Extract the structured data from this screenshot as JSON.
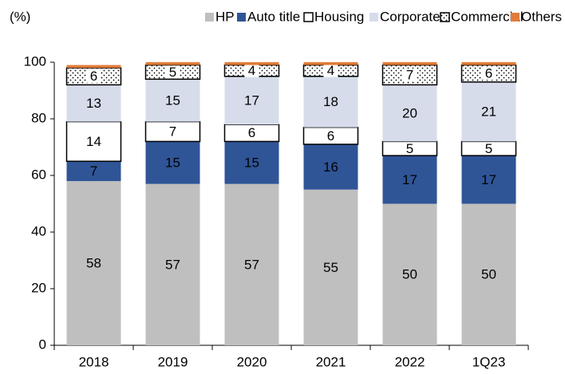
{
  "chart_data": {
    "type": "stacked_bar",
    "y_label": "(%)",
    "categories": [
      "2018",
      "2019",
      "2020",
      "2021",
      "2022",
      "1Q23"
    ],
    "series": [
      {
        "name": "HP",
        "color": "#bfbfbf",
        "values": [
          58,
          57,
          57,
          55,
          50,
          50
        ]
      },
      {
        "name": "Auto title",
        "color": "#2f5597",
        "values": [
          7,
          15,
          15,
          16,
          17,
          17
        ]
      },
      {
        "name": "Housing",
        "color": "#ffffff",
        "edge": "#000000",
        "values": [
          14,
          7,
          6,
          6,
          5,
          5
        ]
      },
      {
        "name": "Corporate",
        "color": "#d6dcea",
        "values": [
          13,
          15,
          17,
          18,
          20,
          21
        ]
      },
      {
        "name": "Commercial",
        "color": "#ffffff",
        "edge": "#000000",
        "pattern": "dots",
        "values": [
          6,
          5,
          4,
          4,
          7,
          6
        ]
      },
      {
        "name": "Others",
        "color": "#e07b39",
        "values": [
          1,
          1,
          1,
          1,
          1,
          1
        ]
      }
    ],
    "ylim": [
      0,
      100
    ],
    "yticks": [
      0,
      20,
      40,
      60,
      80,
      100
    ]
  }
}
